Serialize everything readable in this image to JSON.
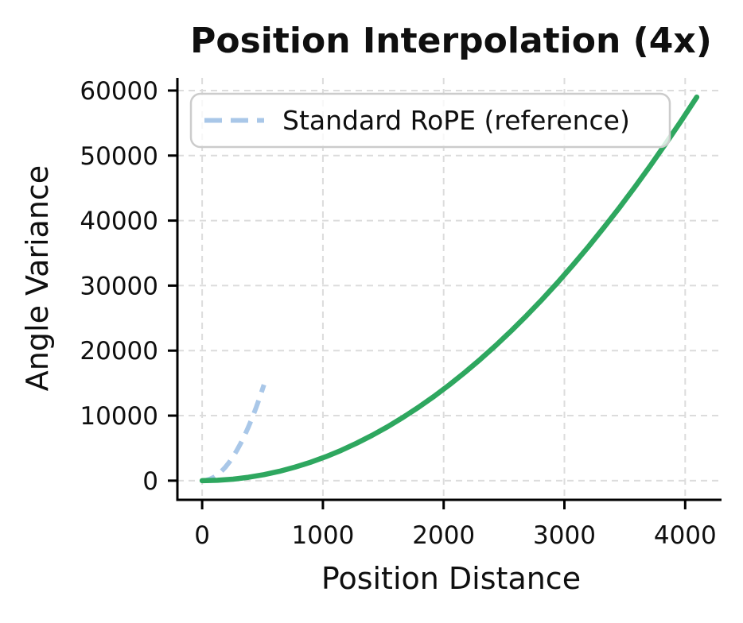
{
  "chart_data": {
    "type": "line",
    "title": "Position Interpolation (4x)",
    "xlabel": "Position Distance",
    "ylabel": "Angle Variance",
    "xlim": [
      -205,
      4301
    ],
    "ylim": [
      -2950,
      61950
    ],
    "xticks": [
      0,
      1000,
      2000,
      3000,
      4000
    ],
    "yticks": [
      0,
      10000,
      20000,
      30000,
      40000,
      50000,
      60000
    ],
    "grid": true,
    "grid_color": "#dcdcdc",
    "grid_style": "dashed",
    "background": "#ffffff",
    "spine_color": "#000000",
    "legend": {
      "position": "upper-left",
      "entries": [
        {
          "label": "Standard RoPE (reference)",
          "color": "#a9c7e8",
          "style": "dashed"
        }
      ]
    },
    "series": [
      {
        "name": "Standard RoPE (reference)",
        "color": "#a9c7e8",
        "style": "dashed",
        "width": 6,
        "in_legend": true,
        "x": [
          0,
          32,
          64,
          96,
          128,
          160,
          192,
          224,
          256,
          288,
          320,
          352,
          384,
          416,
          448,
          480,
          512
        ],
        "y": [
          0,
          58,
          230,
          519,
          922,
          1440,
          2074,
          2823,
          3687,
          4667,
          5762,
          6972,
          8297,
          9738,
          11294,
          12965,
          14750
        ]
      },
      {
        "name": "",
        "color": "#2ea75f",
        "style": "solid",
        "width": 6.5,
        "in_legend": false,
        "x": [
          0,
          128,
          256,
          384,
          512,
          640,
          768,
          896,
          1024,
          1152,
          1280,
          1408,
          1536,
          1664,
          1792,
          1920,
          2048,
          2176,
          2304,
          2432,
          2560,
          2688,
          2816,
          2944,
          3072,
          3200,
          3328,
          3456,
          3584,
          3712,
          3840,
          3968,
          4096
        ],
        "y": [
          0,
          58,
          230,
          519,
          922,
          1440,
          2074,
          2823,
          3688,
          4667,
          5762,
          6972,
          8297,
          9738,
          11294,
          12965,
          14751,
          16653,
          18670,
          20802,
          23049,
          25412,
          27890,
          30483,
          33191,
          36015,
          38954,
          42008,
          45177,
          48462,
          51862,
          55377,
          58998
        ]
      }
    ]
  }
}
